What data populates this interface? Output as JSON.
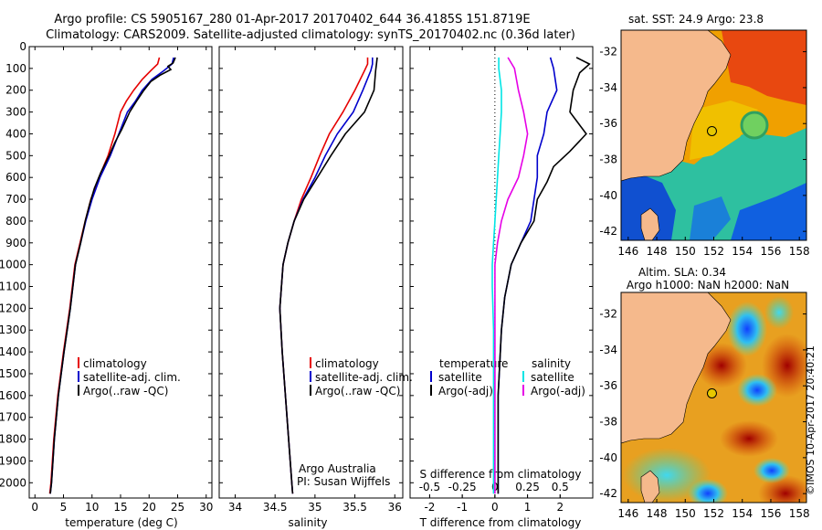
{
  "header": {
    "line1": "Argo profile: CS 5905167_280 01-Apr-2017 20170402_644 36.4185S 151.8719E",
    "line2": "Climatology: CARS2009. Satellite-adjusted climatology: synTS_20170402.nc (0.36d later)"
  },
  "footer": {
    "credit1": "Argo Australia",
    "credit2": "PI: Susan Wijffels",
    "timestamp": "©IMOS 10-Apr-2017 20:40:21"
  },
  "colors": {
    "climatology": "#e60000",
    "satellite": "#0000cc",
    "argo": "#000000",
    "s_satellite": "#00e5e5",
    "s_argo": "#e600e6",
    "land": "#f5b98c",
    "marker": "#e6c800"
  },
  "chart_data": [
    {
      "id": "temperature",
      "type": "line",
      "xlabel": "temperature (deg C)",
      "ylabel": "",
      "xlim": [
        -1,
        31
      ],
      "ylim": [
        2070,
        0
      ],
      "xticks": [
        "0",
        "5",
        "10",
        "15",
        "20",
        "25",
        "30"
      ],
      "xtick_values": [
        0,
        5,
        10,
        15,
        20,
        25,
        30
      ],
      "yticks": [
        "0",
        "100",
        "200",
        "300",
        "400",
        "500",
        "600",
        "700",
        "800",
        "900",
        "1000",
        "1100",
        "1200",
        "1300",
        "1400",
        "1500",
        "1600",
        "1700",
        "1800",
        "1900",
        "2000"
      ],
      "ytick_values": [
        0,
        100,
        200,
        300,
        400,
        500,
        600,
        700,
        800,
        900,
        1000,
        1100,
        1200,
        1300,
        1400,
        1500,
        1600,
        1700,
        1800,
        1900,
        2000
      ],
      "legend": [
        "climatology",
        "satellite-adj. clim.",
        "Argo(..raw -QC)"
      ],
      "series": [
        {
          "name": "climatology",
          "color_key": "climatology",
          "points": [
            [
              21.8,
              50
            ],
            [
              21.5,
              80
            ],
            [
              20.3,
              110
            ],
            [
              18.8,
              150
            ],
            [
              17.3,
              200
            ],
            [
              16.0,
              250
            ],
            [
              15.0,
              300
            ],
            [
              14.0,
              400
            ],
            [
              12.8,
              500
            ],
            [
              11.2,
              600
            ],
            [
              9.8,
              700
            ],
            [
              8.8,
              800
            ],
            [
              7.9,
              900
            ],
            [
              7.0,
              1000
            ],
            [
              6.1,
              1200
            ],
            [
              5.0,
              1400
            ],
            [
              4.0,
              1600
            ],
            [
              3.3,
              1800
            ],
            [
              2.8,
              2000
            ],
            [
              2.6,
              2050
            ]
          ]
        },
        {
          "name": "satellite-adj. clim.",
          "color_key": "satellite",
          "points": [
            [
              24.3,
              50
            ],
            [
              24.0,
              80
            ],
            [
              22.6,
              110
            ],
            [
              20.5,
              150
            ],
            [
              18.8,
              200
            ],
            [
              17.6,
              250
            ],
            [
              16.2,
              300
            ],
            [
              14.7,
              400
            ],
            [
              13.2,
              500
            ],
            [
              11.4,
              600
            ],
            [
              10.0,
              700
            ],
            [
              8.9,
              800
            ],
            [
              8.0,
              900
            ],
            [
              7.1,
              1000
            ],
            [
              6.2,
              1200
            ],
            [
              5.1,
              1400
            ],
            [
              4.1,
              1600
            ],
            [
              3.4,
              1800
            ],
            [
              2.9,
              2000
            ],
            [
              2.7,
              2050
            ]
          ]
        },
        {
          "name": "Argo(..raw -QC)",
          "color_key": "argo",
          "points": [
            [
              24.6,
              50
            ],
            [
              24.2,
              75
            ],
            [
              23.3,
              90
            ],
            [
              23.8,
              105
            ],
            [
              22.0,
              130
            ],
            [
              20.3,
              160
            ],
            [
              19.1,
              200
            ],
            [
              17.8,
              250
            ],
            [
              16.6,
              300
            ],
            [
              15.2,
              380
            ],
            [
              14.0,
              440
            ],
            [
              13.0,
              500
            ],
            [
              11.5,
              580
            ],
            [
              10.4,
              650
            ],
            [
              9.6,
              720
            ],
            [
              8.8,
              800
            ],
            [
              8.0,
              900
            ],
            [
              7.1,
              1000
            ],
            [
              6.2,
              1200
            ],
            [
              5.1,
              1400
            ],
            [
              4.1,
              1600
            ],
            [
              3.4,
              1800
            ],
            [
              2.9,
              2000
            ],
            [
              2.7,
              2050
            ]
          ]
        }
      ]
    },
    {
      "id": "salinity",
      "type": "line",
      "xlabel": "salinity",
      "ylabel": "",
      "xlim": [
        33.8,
        36.1
      ],
      "ylim": [
        2070,
        0
      ],
      "xticks": [
        "34",
        "34.5",
        "35",
        "35.5",
        "36"
      ],
      "xtick_values": [
        34,
        34.5,
        35,
        35.5,
        36
      ],
      "legend": [
        "climatology",
        "satellite-adj. clim.",
        "Argo(..raw -QC)"
      ],
      "series": [
        {
          "name": "climatology",
          "color_key": "climatology",
          "points": [
            [
              35.66,
              50
            ],
            [
              35.66,
              80
            ],
            [
              35.62,
              110
            ],
            [
              35.5,
              200
            ],
            [
              35.35,
              300
            ],
            [
              35.18,
              400
            ],
            [
              35.06,
              500
            ],
            [
              34.95,
              600
            ],
            [
              34.83,
              700
            ],
            [
              34.74,
              800
            ],
            [
              34.66,
              900
            ],
            [
              34.6,
              1000
            ],
            [
              34.56,
              1200
            ],
            [
              34.59,
              1400
            ],
            [
              34.63,
              1600
            ],
            [
              34.67,
              1800
            ],
            [
              34.71,
              2000
            ],
            [
              34.72,
              2050
            ]
          ]
        },
        {
          "name": "satellite-adj. clim.",
          "color_key": "satellite",
          "points": [
            [
              35.72,
              50
            ],
            [
              35.72,
              80
            ],
            [
              35.7,
              110
            ],
            [
              35.6,
              200
            ],
            [
              35.48,
              300
            ],
            [
              35.28,
              400
            ],
            [
              35.13,
              500
            ],
            [
              35.0,
              600
            ],
            [
              34.85,
              700
            ],
            [
              34.74,
              800
            ],
            [
              34.66,
              900
            ],
            [
              34.6,
              1000
            ],
            [
              34.56,
              1200
            ],
            [
              34.59,
              1400
            ],
            [
              34.63,
              1600
            ],
            [
              34.67,
              1800
            ],
            [
              34.71,
              2000
            ],
            [
              34.72,
              2050
            ]
          ]
        },
        {
          "name": "Argo(..raw -QC)",
          "color_key": "argo",
          "points": [
            [
              35.78,
              50
            ],
            [
              35.77,
              80
            ],
            [
              35.76,
              110
            ],
            [
              35.74,
              200
            ],
            [
              35.62,
              300
            ],
            [
              35.38,
              400
            ],
            [
              35.2,
              500
            ],
            [
              35.03,
              600
            ],
            [
              34.86,
              700
            ],
            [
              34.74,
              800
            ],
            [
              34.66,
              900
            ],
            [
              34.6,
              1000
            ],
            [
              34.56,
              1200
            ],
            [
              34.59,
              1400
            ],
            [
              34.63,
              1600
            ],
            [
              34.67,
              1800
            ],
            [
              34.71,
              2000
            ],
            [
              34.72,
              2050
            ]
          ]
        }
      ]
    },
    {
      "id": "difference",
      "type": "line",
      "xlabel": "T difference from climatology",
      "xlabel2": "S difference from climatology",
      "ylabel": "",
      "xlim": [
        -2.6,
        3.0
      ],
      "ylim": [
        2070,
        0
      ],
      "xticks": [
        "-2",
        "-1",
        "0",
        "1",
        "2"
      ],
      "xtick_values": [
        -2,
        -1,
        0,
        1,
        2
      ],
      "xticks2": [
        "-0.5",
        "-0.25",
        "0",
        "0.25",
        "0.5"
      ],
      "xtick2_values": [
        -0.5,
        -0.25,
        0,
        0.25,
        0.5
      ],
      "legend_left": [
        "temperature",
        "satellite",
        "Argo(-adj)"
      ],
      "legend_right": [
        "salinity",
        "satellite",
        "Argo(-adj)"
      ],
      "series": [
        {
          "name": "temperature satellite",
          "color_key": "satellite",
          "points": [
            [
              1.7,
              50
            ],
            [
              1.8,
              100
            ],
            [
              1.9,
              200
            ],
            [
              1.6,
              300
            ],
            [
              1.5,
              400
            ],
            [
              1.3,
              500
            ],
            [
              1.3,
              600
            ],
            [
              1.2,
              700
            ],
            [
              1.1,
              800
            ],
            [
              0.8,
              900
            ],
            [
              0.5,
              1000
            ],
            [
              0.3,
              1150
            ],
            [
              0.2,
              1300
            ],
            [
              0.1,
              1600
            ],
            [
              0.1,
              2050
            ]
          ]
        },
        {
          "name": "temperature Argo(-adj)",
          "color_key": "argo",
          "points": [
            [
              2.5,
              50
            ],
            [
              2.9,
              80
            ],
            [
              2.6,
              120
            ],
            [
              2.4,
              200
            ],
            [
              2.3,
              300
            ],
            [
              2.8,
              400
            ],
            [
              2.3,
              480
            ],
            [
              1.8,
              550
            ],
            [
              1.6,
              620
            ],
            [
              1.3,
              700
            ],
            [
              1.2,
              800
            ],
            [
              0.8,
              900
            ],
            [
              0.5,
              1000
            ],
            [
              0.3,
              1150
            ],
            [
              0.2,
              1300
            ],
            [
              0.1,
              1600
            ],
            [
              0.1,
              2050
            ]
          ]
        },
        {
          "name": "salinity satellite",
          "color_key": "s_satellite",
          "points": [
            [
              0.03,
              50
            ],
            [
              0.03,
              100
            ],
            [
              0.05,
              200
            ],
            [
              0.05,
              300
            ],
            [
              0.04,
              400
            ],
            [
              0.03,
              500
            ],
            [
              0.02,
              600
            ],
            [
              0.01,
              700
            ],
            [
              0.0,
              800
            ],
            [
              -0.01,
              900
            ],
            [
              -0.02,
              1000
            ],
            [
              -0.02,
              1100
            ],
            [
              -0.01,
              1300
            ],
            [
              -0.01,
              1600
            ],
            [
              -0.01,
              2050
            ]
          ]
        },
        {
          "name": "salinity Argo(-adj)",
          "color_key": "s_argo",
          "points": [
            [
              0.1,
              50
            ],
            [
              0.15,
              100
            ],
            [
              0.18,
              200
            ],
            [
              0.22,
              300
            ],
            [
              0.25,
              400
            ],
            [
              0.22,
              500
            ],
            [
              0.18,
              600
            ],
            [
              0.1,
              700
            ],
            [
              0.05,
              800
            ],
            [
              0.02,
              900
            ],
            [
              0.0,
              1000
            ],
            [
              0.0,
              1100
            ],
            [
              0.0,
              1300
            ],
            [
              0.0,
              1600
            ],
            [
              0.0,
              2050
            ]
          ]
        }
      ]
    },
    {
      "id": "sst_map",
      "type": "heatmap",
      "title": "sat. SST: 24.9 Argo: 23.8",
      "xlim": [
        145.5,
        158.5
      ],
      "ylim": [
        -42.5,
        -30.8
      ],
      "xticks": [
        "146",
        "148",
        "150",
        "152",
        "154",
        "156",
        "158"
      ],
      "xtick_values": [
        146,
        148,
        150,
        152,
        154,
        156,
        158
      ],
      "yticks": [
        "-32",
        "-34",
        "-36",
        "-38",
        "-40",
        "-42"
      ],
      "ytick_values": [
        -32,
        -34,
        -36,
        -38,
        -40,
        -42
      ],
      "marker": {
        "lon": 151.87,
        "lat": -36.42
      }
    },
    {
      "id": "sla_map",
      "type": "heatmap",
      "title": "Altim. SLA: 0.34",
      "title2": "Argo h1000: NaN h2000: NaN",
      "xlim": [
        145.5,
        158.5
      ],
      "ylim": [
        -42.5,
        -30.8
      ],
      "xticks": [
        "146",
        "148",
        "150",
        "152",
        "154",
        "156",
        "158"
      ],
      "xtick_values": [
        146,
        148,
        150,
        152,
        154,
        156,
        158
      ],
      "yticks": [
        "-32",
        "-34",
        "-36",
        "-38",
        "-40",
        "-42"
      ],
      "ytick_values": [
        -32,
        -34,
        -36,
        -38,
        -40,
        -42
      ],
      "marker": {
        "lon": 151.87,
        "lat": -36.42
      }
    }
  ]
}
